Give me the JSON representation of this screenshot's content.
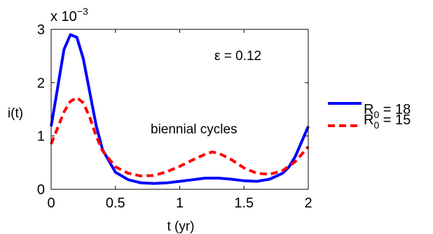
{
  "chart_data": {
    "type": "line",
    "xlabel": "t (yr)",
    "ylabel": "i(t)",
    "xlim": [
      0,
      2
    ],
    "ylim": [
      0,
      3
    ],
    "xticks": [
      "0",
      "0.5",
      "1",
      "1.5",
      "2"
    ],
    "yticks": [
      "0",
      "1",
      "2",
      "3"
    ],
    "y_multiplier": {
      "base": "x 10",
      "exponent": "−3"
    },
    "annotations": {
      "epsilon": "ε = 0.12",
      "cycles": "biennial cycles"
    },
    "legend_position": "right",
    "series": [
      {
        "name": "R_0 = 18",
        "legend_main": "R",
        "legend_sub": "0",
        "legend_tail": " = 18",
        "color": "#0000ff",
        "dash": "solid",
        "x": [
          0,
          0.05,
          0.1,
          0.15,
          0.2,
          0.25,
          0.3,
          0.35,
          0.4,
          0.5,
          0.6,
          0.7,
          0.8,
          0.9,
          1.0,
          1.1,
          1.2,
          1.3,
          1.4,
          1.5,
          1.6,
          1.7,
          1.8,
          1.85,
          1.9,
          1.95,
          2.0
        ],
        "y": [
          1.18,
          1.9,
          2.62,
          2.9,
          2.85,
          2.45,
          1.82,
          1.2,
          0.74,
          0.32,
          0.18,
          0.12,
          0.11,
          0.12,
          0.15,
          0.18,
          0.21,
          0.21,
          0.19,
          0.16,
          0.15,
          0.19,
          0.3,
          0.42,
          0.62,
          0.9,
          1.18
        ]
      },
      {
        "name": "R_0 = 15",
        "legend_main": "R",
        "legend_sub": "0",
        "legend_tail": " = 15",
        "color": "#ff0000",
        "dash": "dashed",
        "x": [
          0,
          0.05,
          0.1,
          0.15,
          0.2,
          0.25,
          0.3,
          0.35,
          0.4,
          0.5,
          0.6,
          0.7,
          0.8,
          0.9,
          1.0,
          1.1,
          1.2,
          1.25,
          1.3,
          1.4,
          1.5,
          1.6,
          1.7,
          1.8,
          1.9,
          1.95,
          2.0
        ],
        "y": [
          0.85,
          1.15,
          1.45,
          1.65,
          1.72,
          1.62,
          1.35,
          1.0,
          0.72,
          0.42,
          0.3,
          0.25,
          0.26,
          0.33,
          0.43,
          0.55,
          0.66,
          0.7,
          0.68,
          0.56,
          0.4,
          0.3,
          0.28,
          0.35,
          0.52,
          0.66,
          0.8
        ]
      }
    ]
  }
}
